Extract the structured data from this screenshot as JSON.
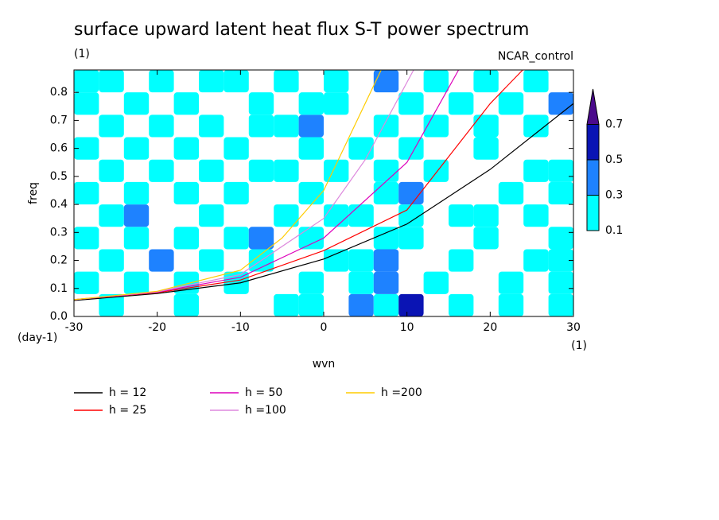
{
  "chart_data": {
    "type": "contour-line",
    "title": "surface upward latent heat flux S-T power spectrum",
    "subtitle": "(1)",
    "annotation": "NCAR_control",
    "x_label": "wvn",
    "y_label": "freq",
    "y_unit": "(day-1)",
    "x_unit": "(1)",
    "xlim": [
      -30,
      30
    ],
    "ylim": [
      0,
      0.88
    ],
    "xticks": [
      -30,
      -20,
      -10,
      0,
      10,
      20,
      30
    ],
    "yticks": [
      {
        "value": 0,
        "label": "0.0"
      },
      0.1,
      0.2,
      0.3,
      0.4,
      0.5,
      0.6,
      0.7,
      0.8
    ],
    "levels": [
      0.1,
      0.3,
      0.5,
      0.7
    ],
    "level_colors": [
      "#00ffff",
      "#1e82ff",
      "#0a14b4",
      "#4b0a8c"
    ],
    "field": {
      "x": [
        -28.5,
        -25.5,
        -22.5,
        -19.5,
        -16.5,
        -13.5,
        -10.5,
        -7.5,
        -4.5,
        -1.5,
        1.5,
        4.5,
        7.5,
        10.5,
        13.5,
        16.5,
        19.5,
        22.5,
        25.5,
        28.5
      ],
      "y": [
        0.04,
        0.12,
        0.2,
        0.28,
        0.36,
        0.44,
        0.52,
        0.6,
        0.68,
        0.76,
        0.84
      ],
      "z": [
        [
          0,
          0.15,
          0,
          0,
          0.15,
          0,
          0,
          0,
          0.15,
          0.2,
          0,
          0.35,
          0.2,
          0.55,
          0,
          0.15,
          0,
          0.2,
          0,
          0.15
        ],
        [
          0.15,
          0,
          0.2,
          0,
          0.15,
          0,
          0.15,
          0,
          0,
          0.15,
          0,
          0.15,
          0.35,
          0,
          0.15,
          0,
          0,
          0.15,
          0,
          0.2
        ],
        [
          0,
          0.2,
          0,
          0.35,
          0,
          0.15,
          0,
          0.2,
          0,
          0,
          0.15,
          0.15,
          0.35,
          0,
          0,
          0.15,
          0,
          0,
          0.15,
          0.15
        ],
        [
          0.15,
          0,
          0.15,
          0,
          0.2,
          0,
          0.15,
          0.35,
          0,
          0.15,
          0,
          0,
          0.15,
          0.15,
          0,
          0,
          0.15,
          0,
          0,
          0.15
        ],
        [
          0,
          0.2,
          0.35,
          0,
          0,
          0.15,
          0,
          0,
          0.2,
          0,
          0.15,
          0.15,
          0,
          0.15,
          0,
          0.2,
          0.15,
          0,
          0.15,
          0
        ],
        [
          0.2,
          0,
          0.15,
          0,
          0.15,
          0,
          0.2,
          0,
          0,
          0.15,
          0,
          0,
          0.15,
          0.35,
          0,
          0,
          0,
          0.15,
          0,
          0.15
        ],
        [
          0,
          0.15,
          0,
          0.2,
          0,
          0.15,
          0,
          0.15,
          0.2,
          0,
          0.15,
          0,
          0.2,
          0,
          0.15,
          0,
          0,
          0,
          0.15,
          0.2
        ],
        [
          0.15,
          0,
          0.2,
          0,
          0.15,
          0,
          0.15,
          0,
          0,
          0.15,
          0,
          0.2,
          0,
          0.15,
          0,
          0,
          0.15,
          0,
          0,
          0
        ],
        [
          0,
          0.2,
          0,
          0.15,
          0,
          0.2,
          0,
          0.15,
          0.15,
          0.35,
          0,
          0,
          0.15,
          0,
          0.15,
          0,
          0.2,
          0,
          0.15,
          0
        ],
        [
          0.15,
          0,
          0.15,
          0,
          0.2,
          0,
          0,
          0.15,
          0,
          0.15,
          0.2,
          0,
          0,
          0.15,
          0,
          0.15,
          0,
          0.15,
          0,
          0.35
        ],
        [
          0.2,
          0.15,
          0,
          0.15,
          0,
          0.15,
          0.2,
          0,
          0.15,
          0,
          0.15,
          0,
          0.35,
          0,
          0.15,
          0,
          0.15,
          0,
          0.15,
          0
        ]
      ]
    },
    "series": [
      {
        "name": "h = 12",
        "color": "#000000",
        "x": [
          -30,
          -20,
          -10,
          0,
          10,
          20,
          30
        ],
        "values": [
          0.057,
          0.082,
          0.12,
          0.205,
          0.33,
          0.525,
          0.76
        ]
      },
      {
        "name": "h = 25",
        "color": "#ff0000",
        "x": [
          -30,
          -20,
          -10,
          0,
          10,
          20,
          23.9
        ],
        "values": [
          0.06,
          0.085,
          0.13,
          0.235,
          0.38,
          0.76,
          0.88
        ]
      },
      {
        "name": "h = 50",
        "color": "#dd00bb",
        "x": [
          -30,
          -20,
          -10,
          0,
          10,
          16.2
        ],
        "values": [
          0.06,
          0.087,
          0.14,
          0.28,
          0.55,
          0.88
        ]
      },
      {
        "name": "h =100",
        "color": "#dd88dd",
        "x": [
          -30,
          -20,
          -10,
          0,
          5,
          10.8
        ],
        "values": [
          0.06,
          0.088,
          0.15,
          0.35,
          0.56,
          0.88
        ]
      },
      {
        "name": "h =200",
        "color": "#ffcc00",
        "x": [
          -30,
          -20,
          -10,
          -5,
          0,
          6.9
        ],
        "values": [
          0.06,
          0.09,
          0.165,
          0.28,
          0.45,
          0.88
        ]
      }
    ]
  }
}
